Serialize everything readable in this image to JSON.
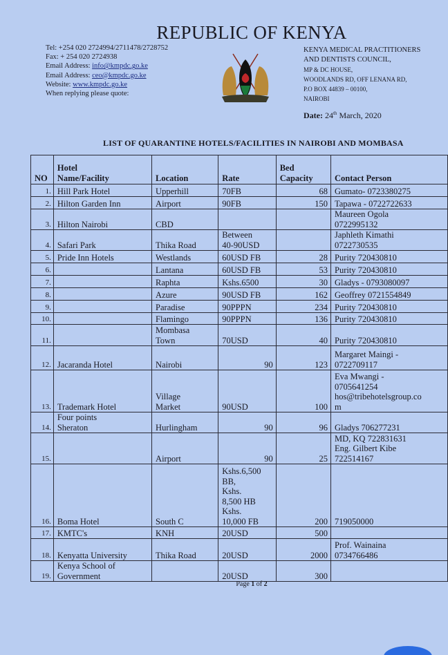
{
  "header": {
    "title": "REPUBLIC OF KENYA",
    "tel": "Tel: +254 020 2724994/2711478/2728752",
    "fax": "Fax: + 254 020 2724938",
    "email_label": "Email Address: ",
    "email1": "info@kmpdc.go.ke",
    "email2": "ceo@kmpdc.go.ke",
    "website_label": "Website: ",
    "website": "www.kmpdc.go.ke",
    "reply": "When replying please quote:",
    "org1": "KENYA MEDICAL PRACTITIONERS",
    "org2": "AND DENTISTS COUNCIL,",
    "addr1": "MP & DC HOUSE,",
    "addr2": "WOODLANDS RD, OFF LENANA RD,",
    "addr3": "P.O BOX 44839 – 00100,",
    "addr4": "NAIROBI",
    "date_label": "Date:",
    "date_day": "24",
    "date_sup": "th",
    "date_rest": "March, 2020"
  },
  "list_title": "LIST OF QUARANTINE HOTELS/FACILITIES IN NAIROBI AND MOMBASA",
  "table": {
    "columns": [
      "NO",
      "Hotel\nName/Facility",
      "Location",
      "Rate",
      "Bed\nCapacity",
      "Contact Person"
    ],
    "rows": [
      [
        "1.",
        "Hill Park Hotel",
        "Upperhill",
        "70FB",
        "68",
        "Gumato- 0723380275"
      ],
      [
        "2.",
        "Hilton Garden Inn",
        "Airport",
        "90FB",
        "150",
        "Tapawa - 0722722633"
      ],
      [
        "3.",
        "Hilton Nairobi",
        "CBD",
        "",
        "",
        "Maureen Ogola\n0722995132"
      ],
      [
        "4.",
        "Safari Park",
        "Thika Road",
        "Between\n40-90USD",
        "",
        "Japhleth Kimathi\n0722730535"
      ],
      [
        "5.",
        "Pride Inn Hotels",
        "Westlands",
        "60USD FB",
        "28",
        "Purity 720430810"
      ],
      [
        "6.",
        "",
        "Lantana",
        "60USD FB",
        "53",
        "Purity 720430810"
      ],
      [
        "7.",
        "",
        "Raphta",
        "Kshs.6500",
        "30",
        "Gladys - 0793080097"
      ],
      [
        "8.",
        "",
        "Azure",
        "90USD FB",
        "162",
        "Geoffrey 0721554849"
      ],
      [
        "9.",
        "",
        "Paradise",
        "90PPPN",
        "234",
        "Purity 720430810"
      ],
      [
        "10.",
        "",
        "Flamingo",
        "90PPPN",
        "136",
        "Purity 720430810"
      ],
      [
        "11.",
        "",
        "Mombasa\nTown",
        "70USD",
        "40",
        "Purity 720430810"
      ],
      [
        "12.",
        "Jacaranda Hotel",
        "Nairobi",
        "90",
        "123",
        "Margaret Maingi -\n0722709117"
      ],
      [
        "13.",
        "Trademark Hotel",
        "Village\nMarket",
        "90USD",
        "100",
        "Eva Mwangi -\n0705641254\nhos@tribehotelsgroup.co\nm"
      ],
      [
        "14.",
        "Four points\nSheraton",
        "Hurlingham",
        "90",
        "96",
        "Gladys 706277231"
      ],
      [
        "15.",
        "",
        "Airport",
        "90",
        "25",
        "MD, KQ 722831631\nEng. Gilbert Kibe\n722514167"
      ],
      [
        "16.",
        "Boma Hotel",
        "South C",
        "Kshs.6,500\nBB,\nKshs.\n8,500 HB\nKshs.\n10,000 FB",
        "200",
        "719050000"
      ],
      [
        "17.",
        "KMTC's",
        "KNH",
        "20USD",
        "500",
        ""
      ],
      [
        "18.",
        "Kenyatta University",
        "Thika Road",
        "20USD",
        "2000",
        "Prof. Wainaina\n0734766486"
      ],
      [
        "19.",
        "Kenya School of\nGovernment",
        "",
        "20USD",
        "300",
        ""
      ]
    ]
  },
  "footer": {
    "page_prefix": "Page ",
    "page": "1",
    "of": " of ",
    "total": "2"
  }
}
